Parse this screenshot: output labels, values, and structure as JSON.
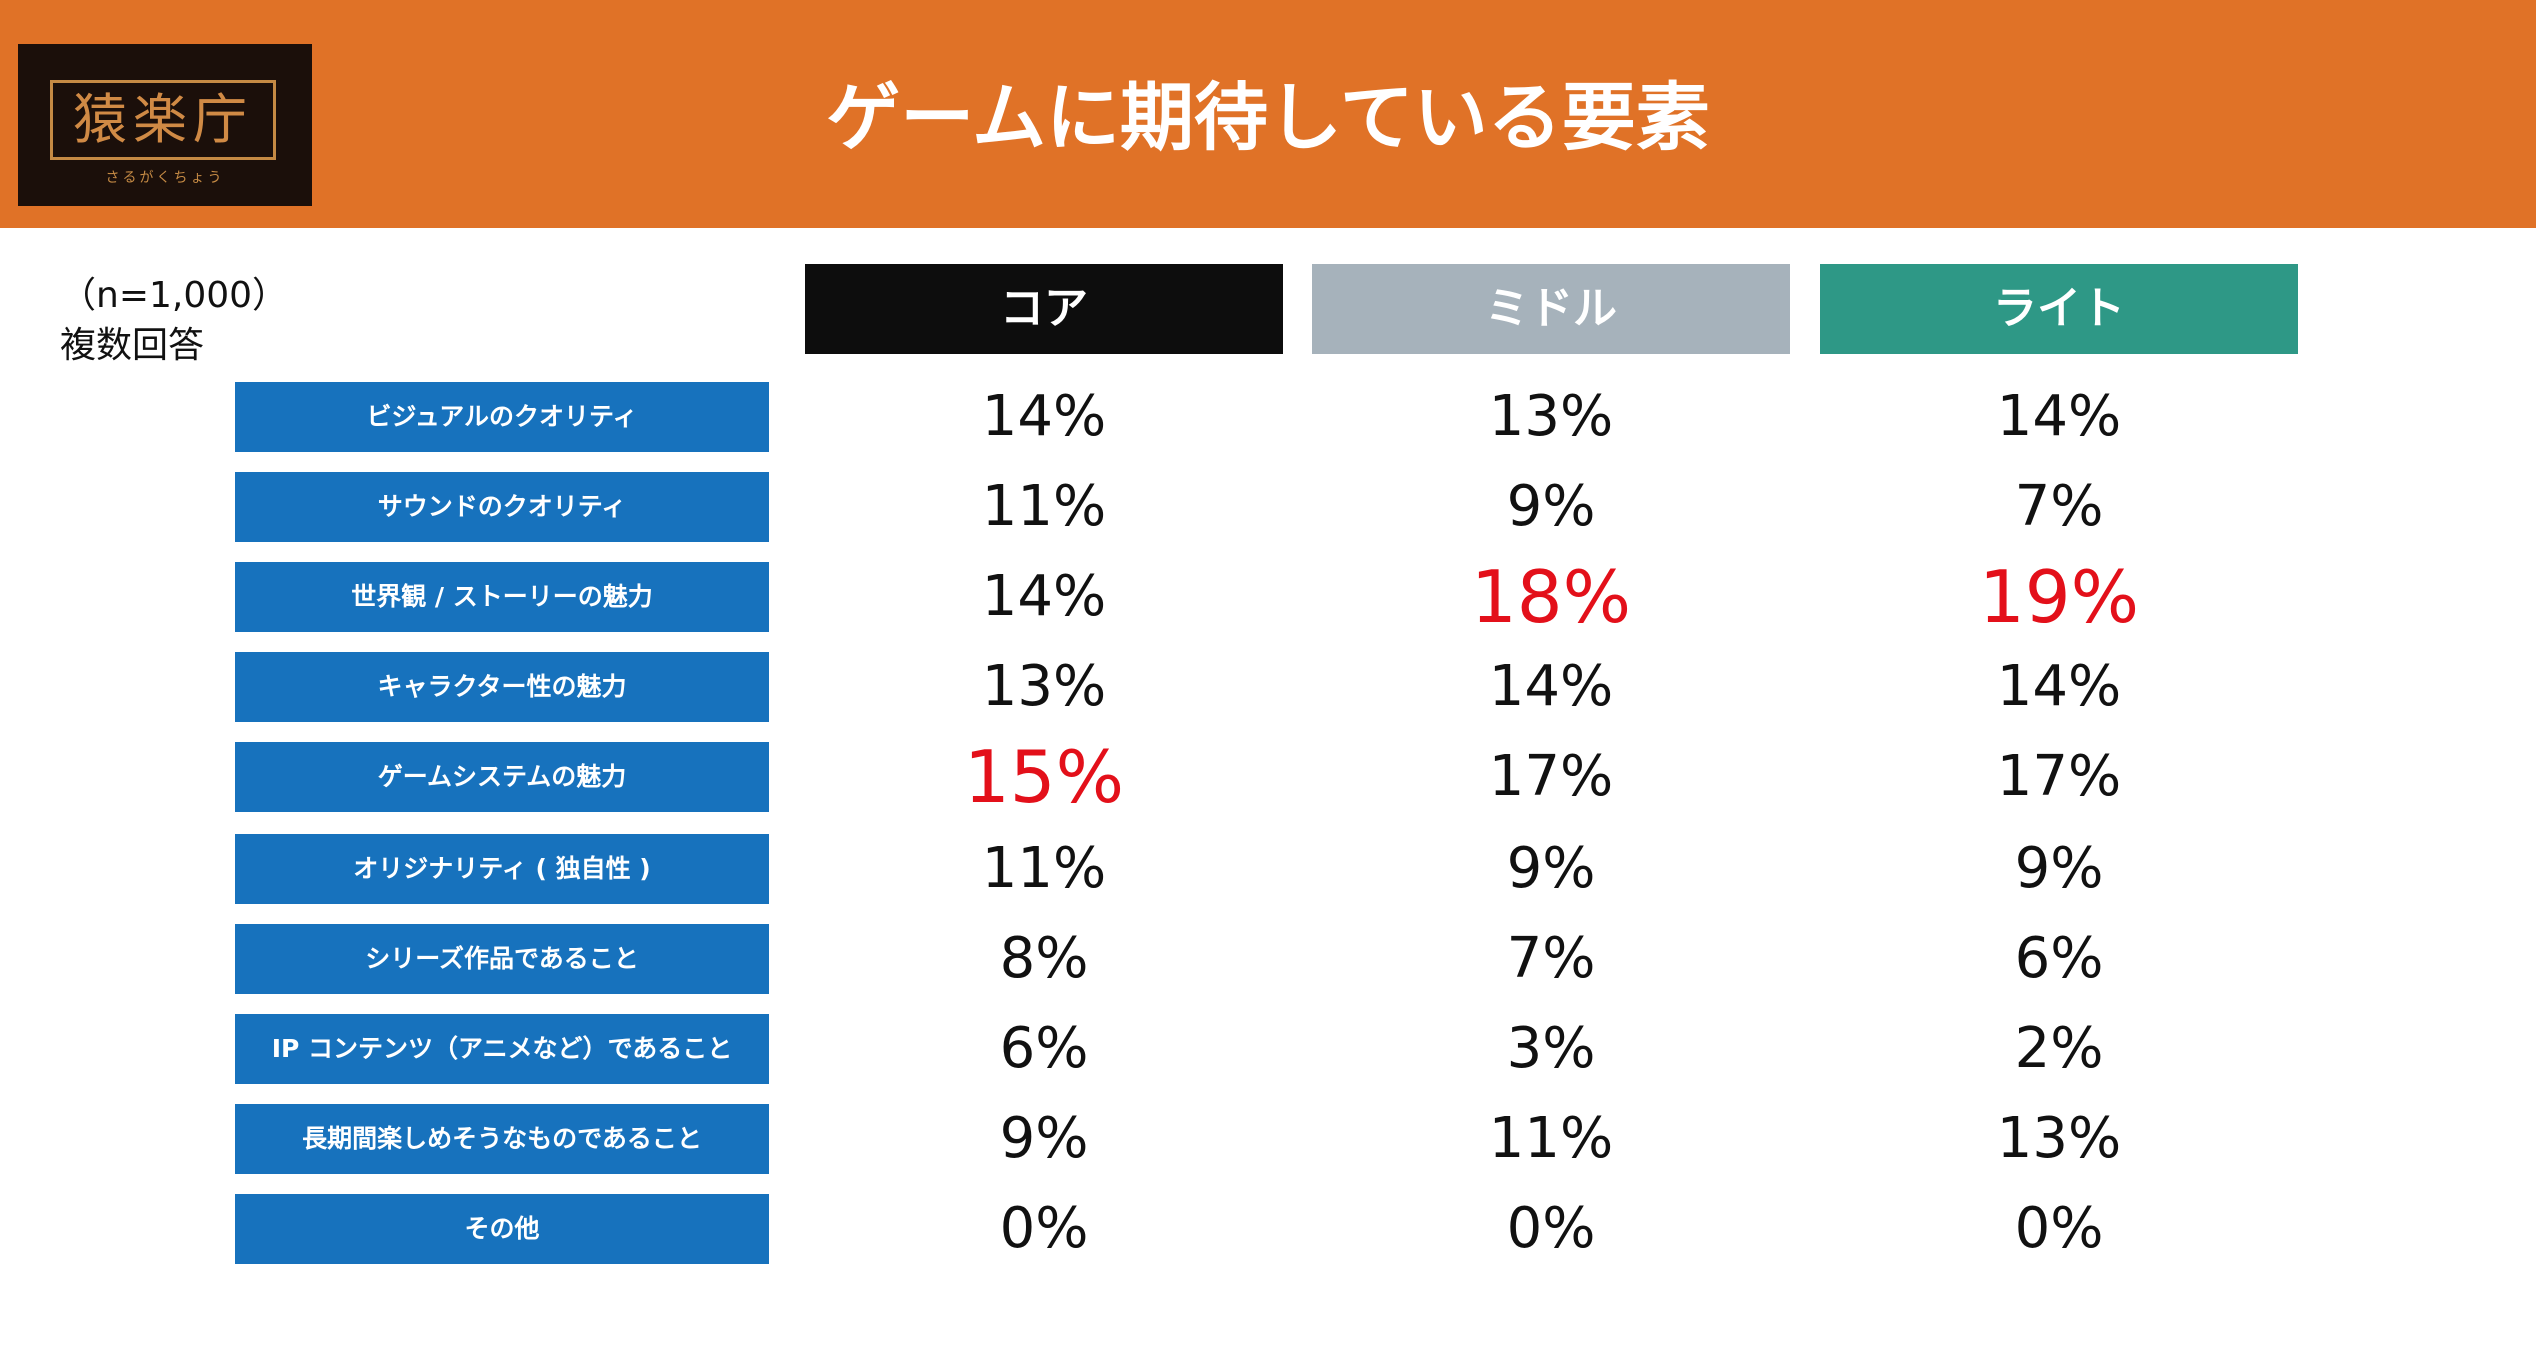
{
  "header": {
    "title": "ゲームに期待している要素",
    "logo": {
      "main": "猿楽庁",
      "sub": "さるがくちょう"
    }
  },
  "note": {
    "sample": "（n=1,000）",
    "type": "複数回答"
  },
  "colors": {
    "header_bg": "#e07227",
    "row_label_bg": "#1772bd",
    "highlight": "#e3101a"
  },
  "chart_data": {
    "type": "table",
    "columns": [
      {
        "label": "コア",
        "color": "#0d0d0d"
      },
      {
        "label": "ミドル",
        "color": "#a6b2bb"
      },
      {
        "label": "ライト",
        "color": "#2e9886"
      }
    ],
    "rows": [
      {
        "label": "ビジュアルのクオリティ",
        "values": [
          "14%",
          "13%",
          "14%"
        ],
        "highlight": [
          false,
          false,
          false
        ]
      },
      {
        "label": "サウンドのクオリティ",
        "values": [
          "11%",
          "9%",
          "7%"
        ],
        "highlight": [
          false,
          false,
          false
        ]
      },
      {
        "label": "世界観 / ストーリーの魅力",
        "values": [
          "14%",
          "18%",
          "19%"
        ],
        "highlight": [
          false,
          true,
          true
        ]
      },
      {
        "label": "キャラクター性の魅力",
        "values": [
          "13%",
          "14%",
          "14%"
        ],
        "highlight": [
          false,
          false,
          false
        ]
      },
      {
        "label": "ゲームシステムの魅力",
        "values": [
          "15%",
          "17%",
          "17%"
        ],
        "highlight": [
          true,
          false,
          false
        ]
      },
      {
        "label": "オリジナリティ ( 独自性 )",
        "values": [
          "11%",
          "9%",
          "9%"
        ],
        "highlight": [
          false,
          false,
          false
        ]
      },
      {
        "label": "シリーズ作品であること",
        "values": [
          "8%",
          "7%",
          "6%"
        ],
        "highlight": [
          false,
          false,
          false
        ]
      },
      {
        "label": "IP コンテンツ（アニメなど）であること",
        "values": [
          "6%",
          "3%",
          "2%"
        ],
        "highlight": [
          false,
          false,
          false
        ]
      },
      {
        "label": "長期間楽しめそうなものであること",
        "values": [
          "9%",
          "11%",
          "13%"
        ],
        "highlight": [
          false,
          false,
          false
        ]
      },
      {
        "label": "その他",
        "values": [
          "0%",
          "0%",
          "0%"
        ],
        "highlight": [
          false,
          false,
          false
        ]
      }
    ]
  }
}
